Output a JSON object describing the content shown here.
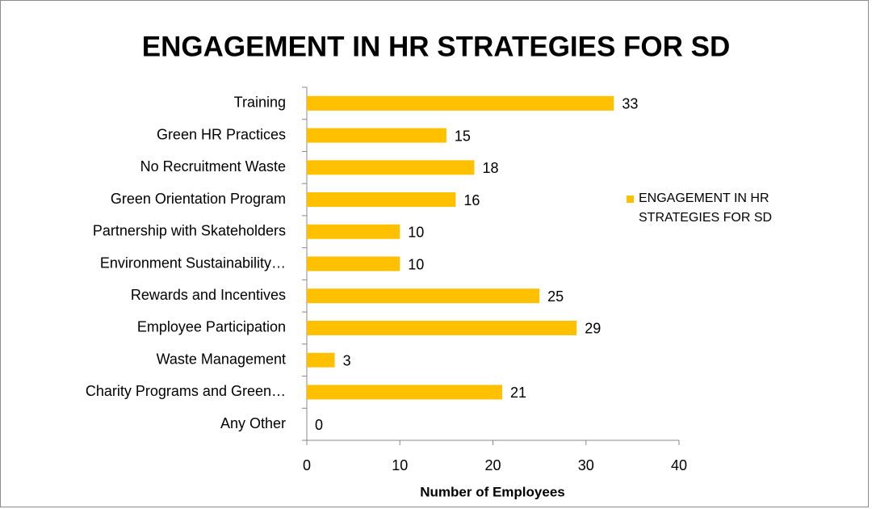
{
  "chart_data": {
    "type": "bar",
    "orientation": "horizontal",
    "title": "ENGAGEMENT IN HR STRATEGIES FOR SD",
    "x_label": "Number of Employees",
    "categories": [
      "Training",
      "Green HR Practices",
      "No Recruitment Waste",
      "Green Orientation Program",
      "Partnership with Skateholders",
      "Environment Sustainability…",
      "Rewards and Incentives",
      "Employee Participation",
      "Waste Management",
      "Charity Programs and Green…",
      "Any Other"
    ],
    "series": [
      {
        "name": "ENGAGEMENT IN HR STRATEGIES FOR SD",
        "color": "#ffc000",
        "values": [
          33,
          15,
          18,
          16,
          10,
          10,
          25,
          29,
          3,
          21,
          0
        ]
      }
    ],
    "xlim": [
      0,
      40
    ],
    "xticks": [
      0,
      10,
      20,
      30,
      40
    ],
    "grid": false,
    "legend": "right"
  }
}
